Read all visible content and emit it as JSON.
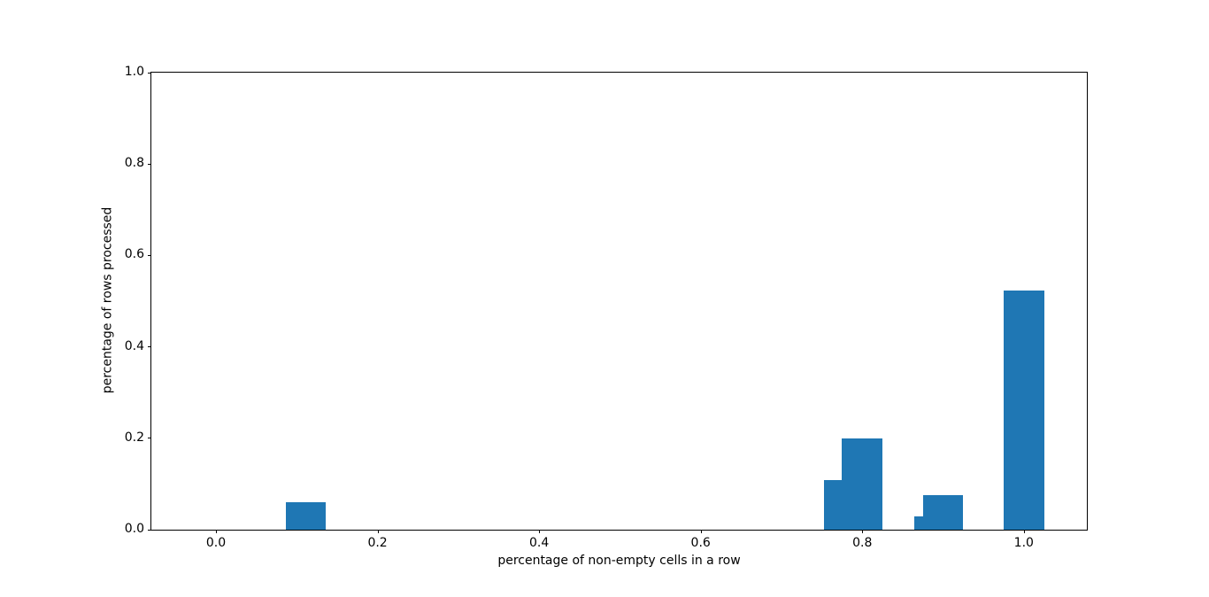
{
  "figure": {
    "background": "#ffffff",
    "frame_color": "#000000",
    "text_color": "#000000"
  },
  "chart_data": {
    "type": "bar",
    "title": "",
    "xlabel": "percentage of non-empty cells in a row",
    "ylabel": "percentage of rows processed",
    "x": [
      0.111,
      0.778,
      0.8,
      0.889,
      0.9,
      1.0
    ],
    "values": [
      0.06,
      0.108,
      0.2,
      0.03,
      0.076,
      0.523
    ],
    "bar_width": 0.05,
    "bar_color": "#1f77b4",
    "xlim": [
      -0.08,
      1.078
    ],
    "ylim": [
      0,
      1.0
    ],
    "x_tick_values": [
      0.0,
      0.2,
      0.4,
      0.6,
      0.8,
      1.0
    ],
    "x_tick_labels": [
      "0.0",
      "0.2",
      "0.4",
      "0.6",
      "0.8",
      "1.0"
    ],
    "y_tick_values": [
      0.0,
      0.2,
      0.4,
      0.6,
      0.8,
      1.0
    ],
    "y_tick_labels": [
      "0.0",
      "0.2",
      "0.4",
      "0.6",
      "0.8",
      "1.0"
    ],
    "grid": false,
    "legend": null
  }
}
